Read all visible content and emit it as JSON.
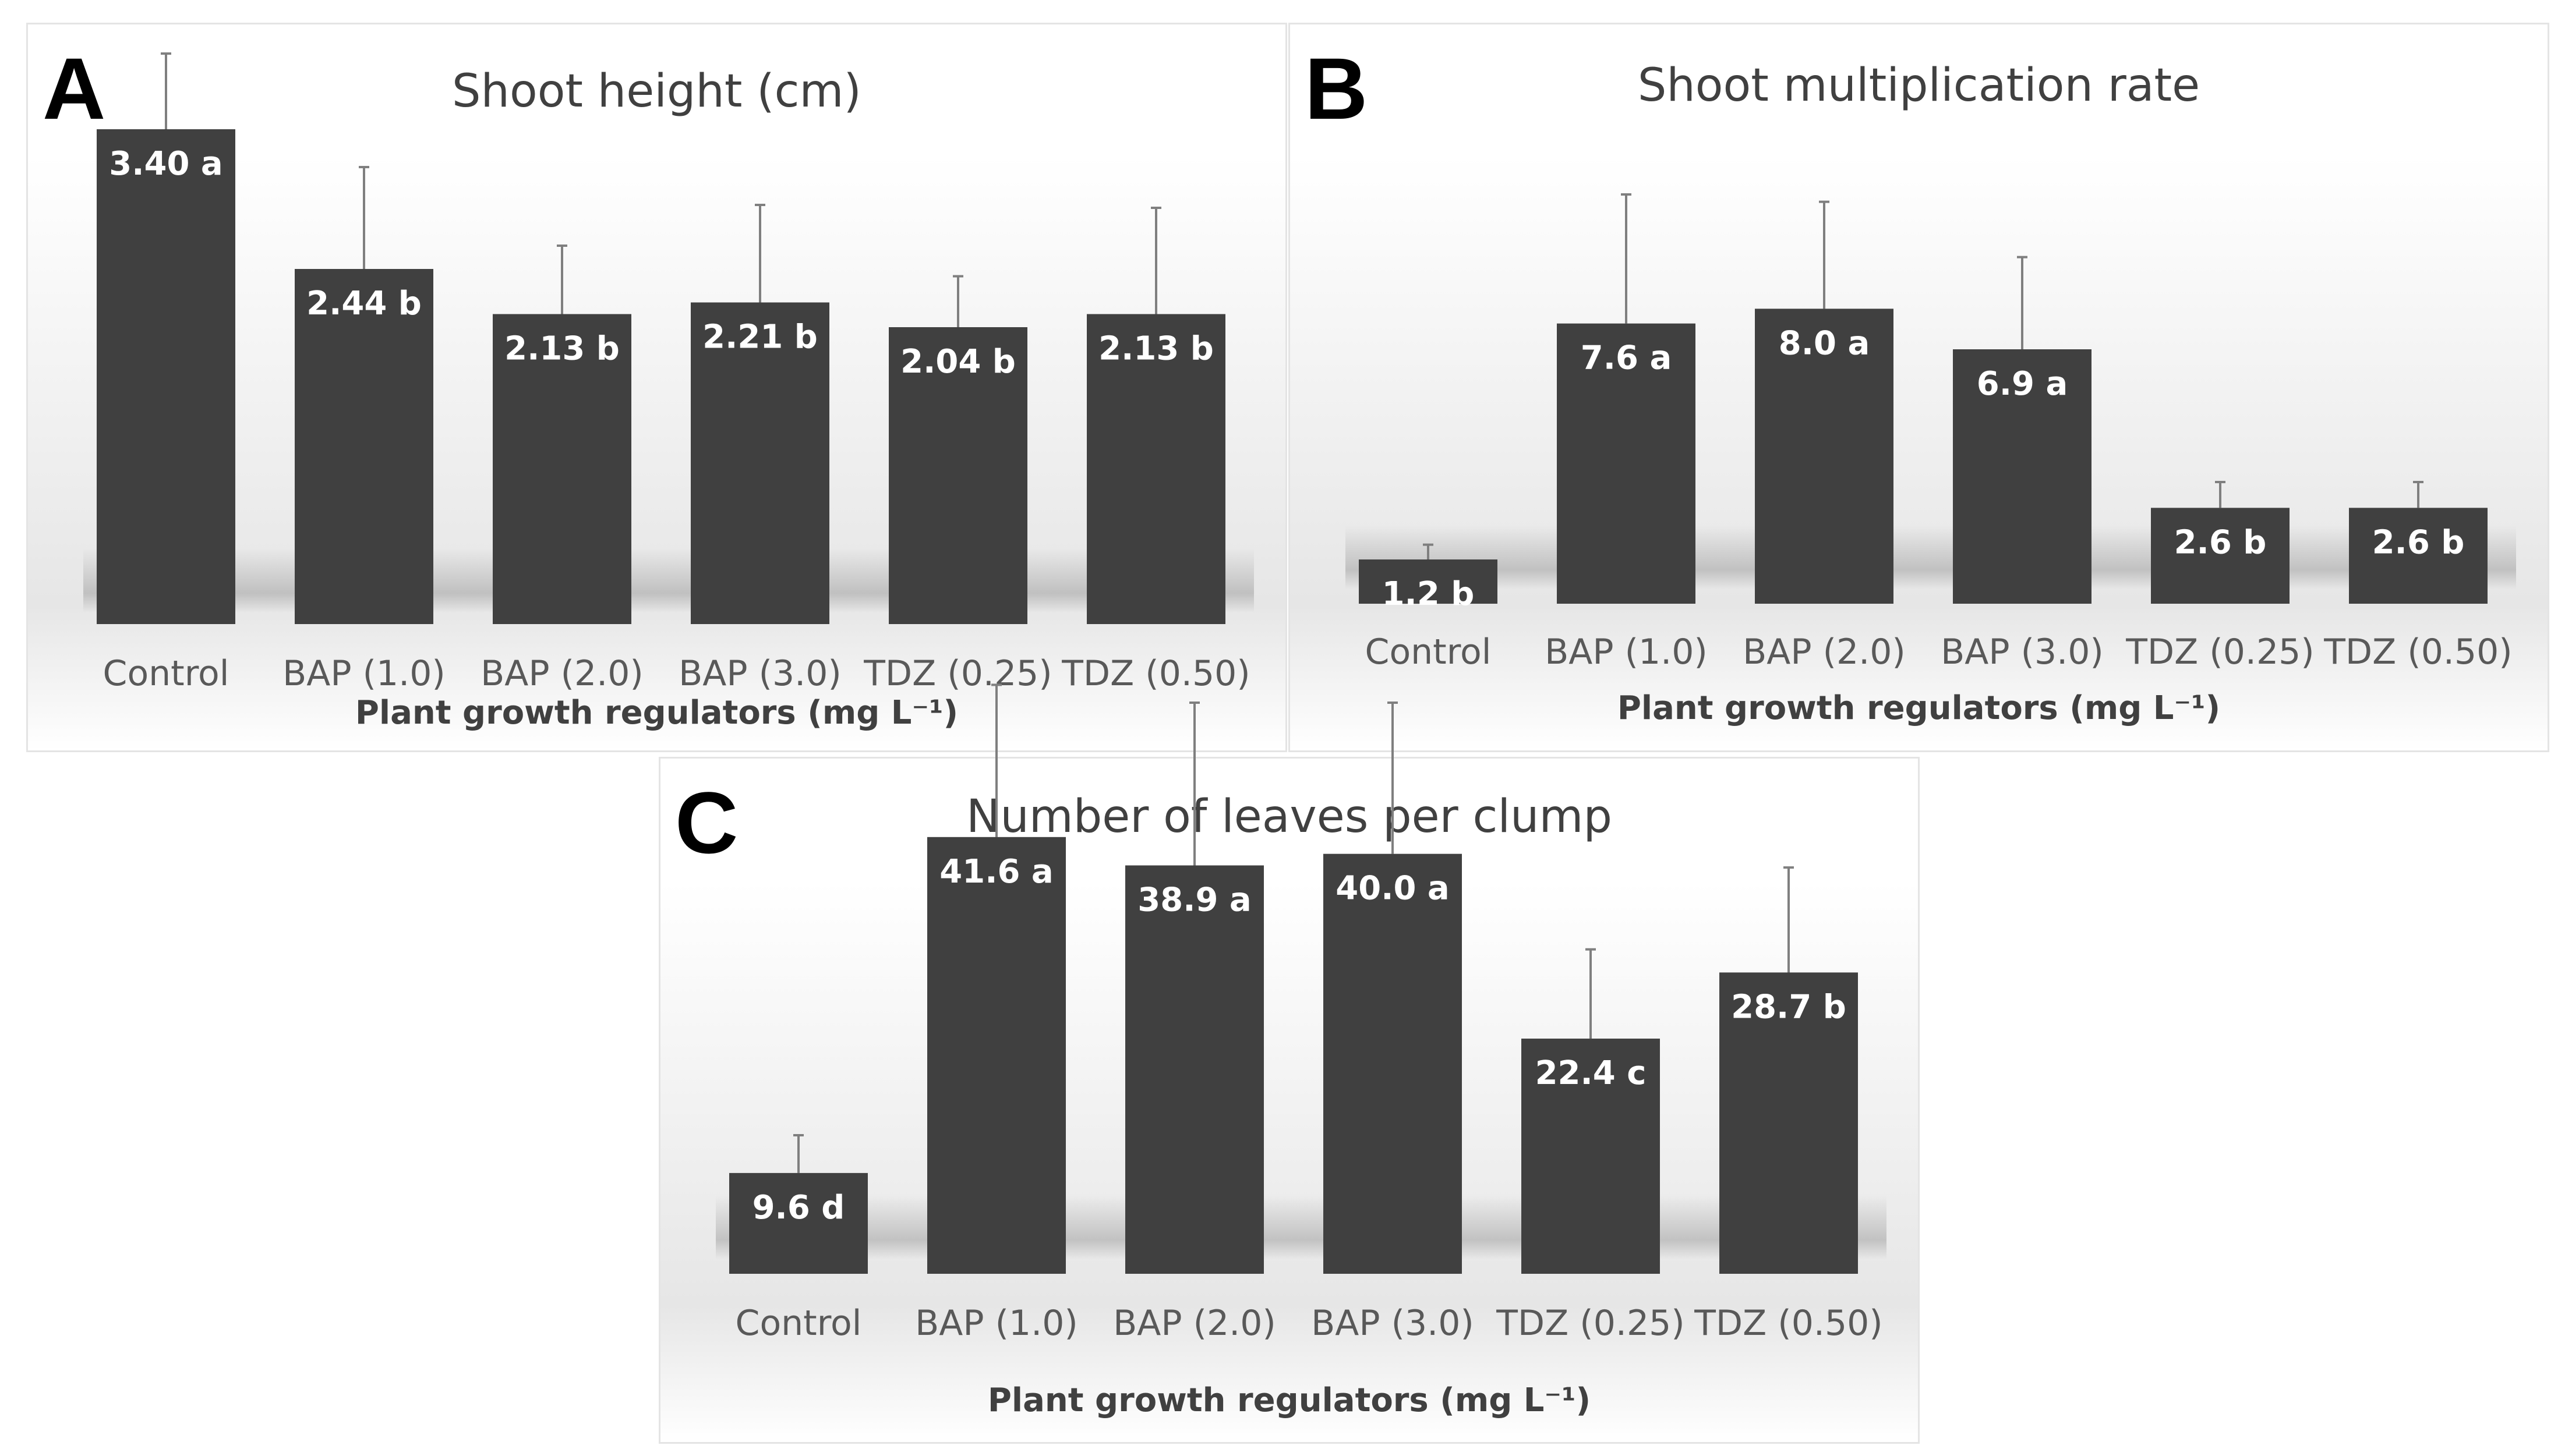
{
  "chart_data": [
    {
      "panel": "A",
      "type": "bar",
      "title": "Shoot height (cm)",
      "xlabel": "Plant growth regulators (mg L⁻¹)",
      "ylabel": "",
      "categories": [
        "Control",
        "BAP (1.0)",
        "BAP (2.0)",
        "BAP (3.0)",
        "TDZ (0.25)",
        "TDZ (0.50)"
      ],
      "values": [
        3.4,
        2.44,
        2.13,
        2.21,
        2.04,
        2.13
      ],
      "errors": [
        0.52,
        0.7,
        0.47,
        0.67,
        0.35,
        0.73
      ],
      "labels": [
        "3.40 a",
        "2.44 b",
        "2.13 b",
        "2.21 b",
        "2.04 b",
        "2.13 b"
      ],
      "ylim": [
        0,
        4.0
      ]
    },
    {
      "panel": "B",
      "type": "bar",
      "title": "Shoot multiplication rate",
      "xlabel": "Plant growth regulators (mg L⁻¹)",
      "ylabel": "",
      "categories": [
        "Control",
        "BAP (1.0)",
        "BAP (2.0)",
        "BAP (3.0)",
        "TDZ (0.25)",
        "TDZ (0.50)"
      ],
      "values": [
        1.2,
        7.6,
        8.0,
        6.9,
        2.6,
        2.6
      ],
      "errors": [
        0.4,
        3.5,
        2.9,
        2.5,
        0.7,
        0.7
      ],
      "labels": [
        "1.2 b",
        "7.6 a",
        "8.0 a",
        "6.9 a",
        "2.6 b",
        "2.6 b"
      ],
      "ylim": [
        0,
        12.0
      ]
    },
    {
      "panel": "C",
      "type": "bar",
      "title": "Number of leaves per clump",
      "xlabel": "Plant growth regulators (mg L⁻¹)",
      "ylabel": "",
      "categories": [
        "Control",
        "BAP (1.0)",
        "BAP (2.0)",
        "BAP (3.0)",
        "TDZ (0.25)",
        "TDZ (0.50)"
      ],
      "values": [
        9.6,
        41.6,
        38.9,
        40.0,
        22.4,
        28.7
      ],
      "errors": [
        3.6,
        14.5,
        15.5,
        14.4,
        8.5,
        10.0
      ],
      "labels": [
        "9.6 d",
        "41.6 a",
        "38.9 a",
        "40.0 a",
        "22.4 c",
        "28.7 b"
      ],
      "ylim": [
        0,
        60.0
      ]
    }
  ],
  "colors": {
    "bar": "#404040",
    "errorbar": "#7f7f7f",
    "label": "#ffffff",
    "tick": "#595959"
  }
}
